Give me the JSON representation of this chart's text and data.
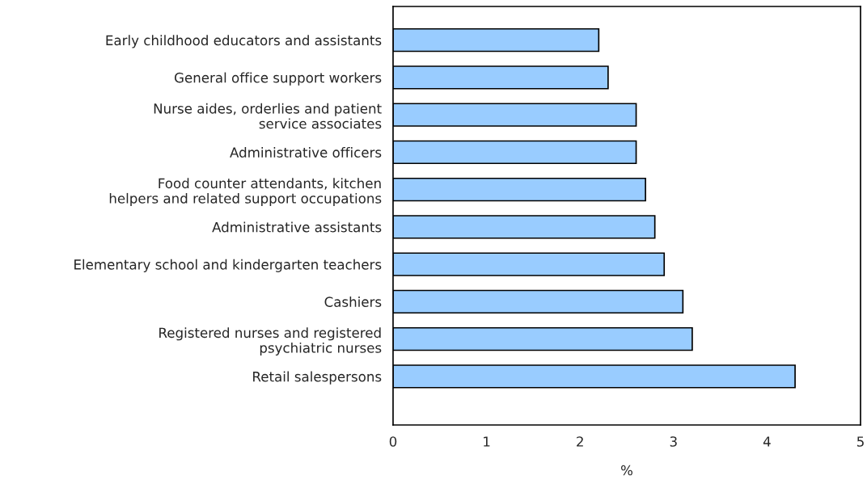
{
  "chart_data": {
    "type": "bar",
    "orientation": "horizontal",
    "xlabel": "%",
    "categories": [
      "Early childhood educators and assistants",
      "General office support workers",
      "Nurse aides, orderlies and patient\nservice associates",
      "Administrative officers",
      "Food counter attendants, kitchen\nhelpers and related support occupations",
      "Administrative assistants",
      "Elementary school and kindergarten teachers",
      "Cashiers",
      "Registered nurses and registered\npsychiatric nurses",
      "Retail salespersons"
    ],
    "values": [
      2.2,
      2.3,
      2.6,
      2.6,
      2.7,
      2.8,
      2.9,
      3.1,
      3.2,
      4.3
    ],
    "color": "#99ccff",
    "xlim": [
      0,
      5
    ],
    "xticks": [
      0,
      1,
      2,
      3,
      4,
      5
    ],
    "grid": false,
    "legend": false
  }
}
